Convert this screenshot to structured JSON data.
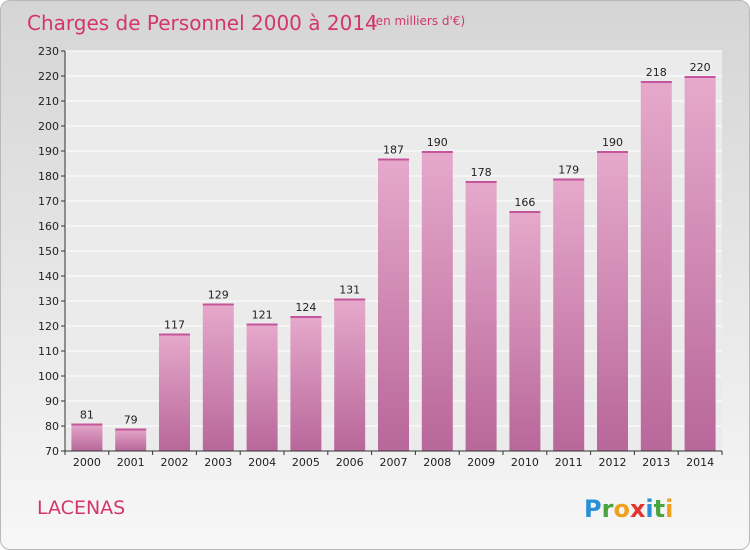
{
  "header": {
    "title": "Charges de Personnel 2000 à 2014",
    "subtitle": "(en milliers d'€)"
  },
  "footer": {
    "city": "LACENAS",
    "logo_letters": [
      "P",
      "r",
      "o",
      "x",
      "i",
      "t",
      "i"
    ],
    "logo_colors": [
      "#2a8fd4",
      "#4aa43d",
      "#f0a01e",
      "#e3342f",
      "#2a8fd4",
      "#4aa43d",
      "#f0a01e"
    ]
  },
  "chart_data": {
    "type": "bar",
    "title": "Charges de Personnel 2000 à 2014",
    "subtitle": "(en milliers d'€)",
    "categories": [
      "2000",
      "2001",
      "2002",
      "2003",
      "2004",
      "2005",
      "2006",
      "2007",
      "2008",
      "2009",
      "2010",
      "2011",
      "2012",
      "2013",
      "2014"
    ],
    "values": [
      81,
      79,
      117,
      129,
      121,
      124,
      131,
      187,
      190,
      178,
      166,
      179,
      190,
      218,
      220
    ],
    "ylim": [
      70,
      230
    ],
    "yticks": [
      70,
      80,
      90,
      100,
      110,
      120,
      130,
      140,
      150,
      160,
      170,
      180,
      190,
      200,
      210,
      220,
      230
    ],
    "grid": true,
    "bar_color": "#d98bb8",
    "bar_gradient": [
      "#e6a9cb",
      "#b8679a"
    ]
  }
}
